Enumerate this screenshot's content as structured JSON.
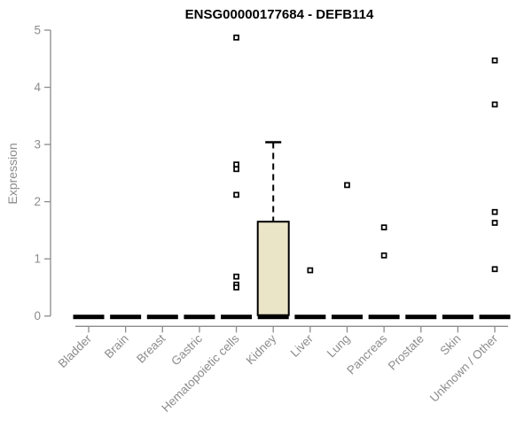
{
  "colors": {
    "background": "#FFFFFF",
    "title_text": "#000000",
    "axis_line": "#8C8C8C",
    "axis_text": "#8C8C8C",
    "box_fill": "#EBE5C7",
    "box_stroke": "#000000",
    "outlier_fill": "#FFFFFF",
    "outlier_stroke": "#000000"
  },
  "chart_data": {
    "type": "boxplot",
    "title": "ENSG00000177684 - DEFB114",
    "xlabel": "",
    "ylabel": "Expression",
    "ylim": [
      0,
      5
    ],
    "yticks": [
      0,
      1,
      2,
      3,
      4,
      5
    ],
    "grid": false,
    "legend": false,
    "categories": [
      "Bladder",
      "Brain",
      "Breast",
      "Gastric",
      "Hematopoietic cells",
      "Kidney",
      "Liver",
      "Lung",
      "Pancreas",
      "Prostate",
      "Skin",
      "Unknown / Other"
    ],
    "boxes": [
      {
        "category": "Bladder",
        "median": 0,
        "q1": 0,
        "q3": 0,
        "whisker_low": 0,
        "whisker_high": 0,
        "outliers": []
      },
      {
        "category": "Brain",
        "median": 0,
        "q1": 0,
        "q3": 0,
        "whisker_low": 0,
        "whisker_high": 0,
        "outliers": []
      },
      {
        "category": "Breast",
        "median": 0,
        "q1": 0,
        "q3": 0,
        "whisker_low": 0,
        "whisker_high": 0,
        "outliers": []
      },
      {
        "category": "Gastric",
        "median": 0,
        "q1": 0,
        "q3": 0,
        "whisker_low": 0,
        "whisker_high": 0,
        "outliers": []
      },
      {
        "category": "Hematopoietic cells",
        "median": 0,
        "q1": 0,
        "q3": 0,
        "whisker_low": 0,
        "whisker_high": 0,
        "outliers": [
          4.87,
          2.65,
          2.57,
          2.12,
          0.69,
          0.55,
          0.5
        ]
      },
      {
        "category": "Kidney",
        "median": 0,
        "q1": 0,
        "q3": 1.65,
        "whisker_low": 0,
        "whisker_high": 3.04,
        "outliers": []
      },
      {
        "category": "Liver",
        "median": 0,
        "q1": 0,
        "q3": 0,
        "whisker_low": 0,
        "whisker_high": 0,
        "outliers": [
          0.8
        ]
      },
      {
        "category": "Lung",
        "median": 0,
        "q1": 0,
        "q3": 0,
        "whisker_low": 0,
        "whisker_high": 0,
        "outliers": [
          2.29
        ]
      },
      {
        "category": "Pancreas",
        "median": 0,
        "q1": 0,
        "q3": 0,
        "whisker_low": 0,
        "whisker_high": 0,
        "outliers": [
          1.55,
          1.06
        ]
      },
      {
        "category": "Prostate",
        "median": 0,
        "q1": 0,
        "q3": 0,
        "whisker_low": 0,
        "whisker_high": 0,
        "outliers": []
      },
      {
        "category": "Skin",
        "median": 0,
        "q1": 0,
        "q3": 0,
        "whisker_low": 0,
        "whisker_high": 0,
        "outliers": []
      },
      {
        "category": "Unknown / Other",
        "median": 0,
        "q1": 0,
        "q3": 0,
        "whisker_low": 0,
        "whisker_high": 0,
        "outliers": [
          4.47,
          3.7,
          1.82,
          1.63,
          0.82
        ]
      }
    ]
  }
}
